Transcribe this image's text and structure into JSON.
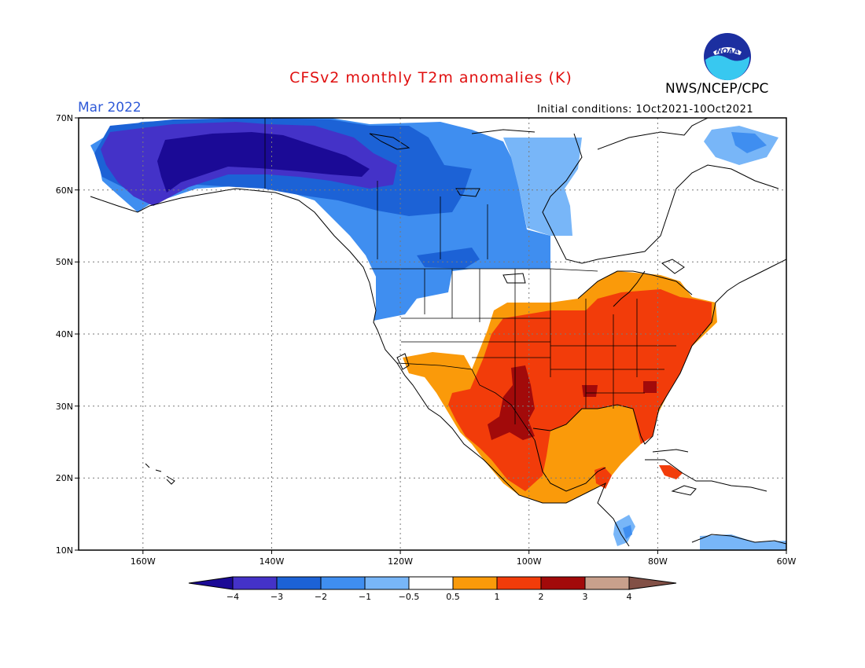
{
  "header": {
    "title": "CFSv2 monthly T2m anomalies (K)",
    "period": "Mar 2022",
    "agency": "NWS/NCEP/CPC",
    "initial_conditions": "Initial conditions: 1Oct2021-10Oct2021",
    "logo_text": "NOAA"
  },
  "map": {
    "region": "North America",
    "lat_ticks": [
      "70N",
      "60N",
      "50N",
      "40N",
      "30N",
      "20N",
      "10N"
    ],
    "lon_ticks": [
      "160W",
      "140W",
      "120W",
      "100W",
      "80W",
      "60W"
    ],
    "gridlines": "dotted"
  },
  "legend": {
    "tick_labels": [
      "-4",
      "-3",
      "-2",
      "-1",
      "-0.5",
      "0.5",
      "1",
      "2",
      "3",
      "4"
    ],
    "colors": [
      "#1b0a96",
      "#4432c8",
      "#1c62d6",
      "#3f8ef0",
      "#78b6f8",
      "#ffffff",
      "#fa9a0a",
      "#f23c0a",
      "#a20a0a",
      "#c8a08c",
      "#825046"
    ]
  },
  "colors": {
    "title": "#e01010",
    "period": "#2f5ad8",
    "land_outline": "#000000"
  }
}
